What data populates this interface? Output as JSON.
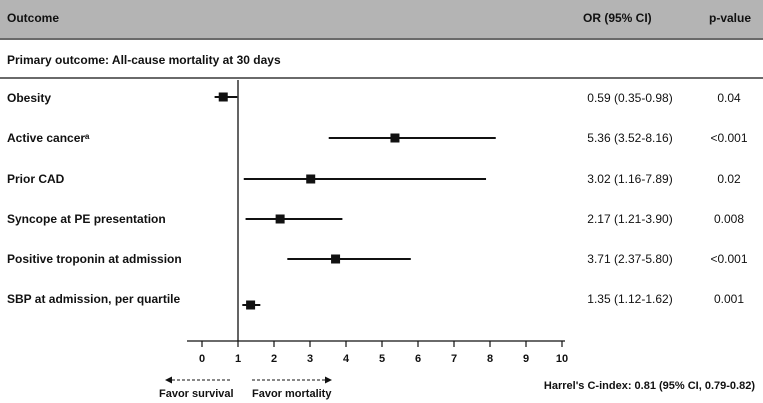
{
  "header": {
    "outcome": "Outcome",
    "or": "OR (95% CI)",
    "p": "p-value"
  },
  "section_title": "Primary outcome: All-cause mortality at 30 days",
  "rows": [
    {
      "label": "Obesity",
      "or_text": "0.59 (0.35-0.98)",
      "p": "0.04"
    },
    {
      "label": "Active cancerᵃ",
      "or_text": "5.36 (3.52-8.16)",
      "p": "<0.001"
    },
    {
      "label": "Prior CAD",
      "or_text": "3.02 (1.16-7.89)",
      "p": "0.02"
    },
    {
      "label": "Syncope at PE presentation",
      "or_text": "2.17 (1.21-3.90)",
      "p": "0.008"
    },
    {
      "label": "Positive troponin at admission",
      "or_text": "3.71 (2.37-5.80)",
      "p": "<0.001"
    },
    {
      "label": "SBP at admission, per quartile",
      "or_text": "1.35 (1.12-1.62)",
      "p": "0.001"
    }
  ],
  "footer": {
    "favor_left": "Favor survival",
    "favor_right": "Favor mortality",
    "cindex": "Harrel's C-index: 0.81 (95% CI, 0.79-0.82)"
  },
  "chart_data": {
    "type": "forest",
    "reference_line": 1,
    "xlim": [
      0,
      10
    ],
    "xticks": [
      0,
      1,
      2,
      3,
      4,
      5,
      6,
      7,
      8,
      9,
      10
    ],
    "categories": [
      "Obesity",
      "Active cancerᵃ",
      "Prior CAD",
      "Syncope at PE presentation",
      "Positive troponin at admission",
      "SBP at admission, per quartile"
    ],
    "or": [
      0.59,
      5.36,
      3.02,
      2.17,
      3.71,
      1.35
    ],
    "ci_low": [
      0.35,
      3.52,
      1.16,
      1.21,
      2.37,
      1.12
    ],
    "ci_high": [
      0.98,
      8.16,
      7.89,
      3.9,
      5.8,
      1.62
    ],
    "colors": {
      "marker": "#111111",
      "header_bg": "#b4b4b4",
      "rule": "#6a6a6a"
    }
  }
}
